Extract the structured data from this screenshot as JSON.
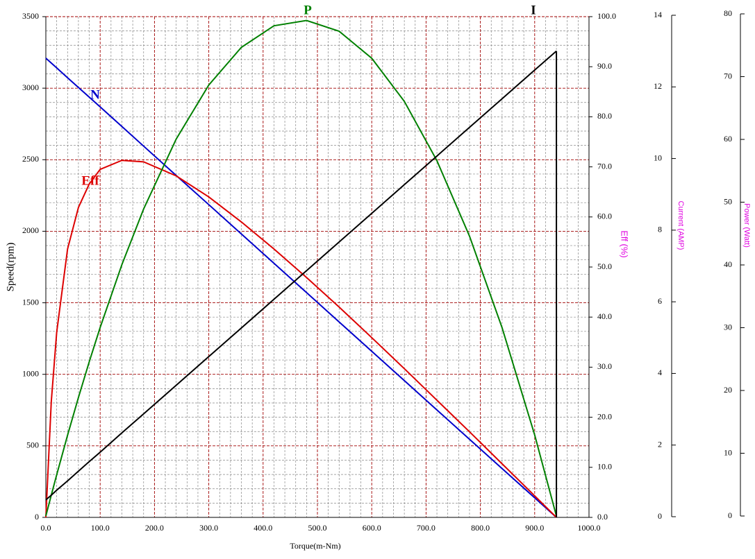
{
  "chart_data": {
    "type": "line",
    "x_label": "Torque(m-Nm)",
    "y_label": "Speed(rpm)",
    "y2_label": "Eff (%)",
    "y3_label": "Current (AMP)",
    "y4_label": "Power (Watt)",
    "grid": true,
    "x": [
      0,
      10,
      20,
      40,
      60,
      80,
      100,
      140,
      180,
      240,
      300,
      360,
      420,
      480,
      540,
      600,
      660,
      720,
      780,
      840,
      900,
      940
    ],
    "series": [
      {
        "name": "N",
        "color": "#0000cc",
        "axis": "y",
        "values": [
          3210,
          3176,
          3142,
          3073,
          3005,
          2937,
          2869,
          2732,
          2595,
          2390,
          2186,
          1981,
          1776,
          1571,
          1366,
          1161,
          956,
          751,
          546,
          341,
          137,
          0
        ]
      },
      {
        "name": "Eff",
        "color": "#dd0000",
        "axis": "y2",
        "values": [
          0,
          23.1,
          37.0,
          53.6,
          61.9,
          66.6,
          69.5,
          71.3,
          71.0,
          68.2,
          64.0,
          59.0,
          53.6,
          47.9,
          42.0,
          35.9,
          29.7,
          23.4,
          17.1,
          10.7,
          4.3,
          0
        ]
      },
      {
        "name": "P",
        "color": "#008000",
        "axis": "y4",
        "values": [
          0,
          3.33,
          6.58,
          12.87,
          18.88,
          24.6,
          30.04,
          40.05,
          48.91,
          60.06,
          68.66,
          74.67,
          78.1,
          78.95,
          77.23,
          72.93,
          66.06,
          56.61,
          44.59,
          29.99,
          12.91,
          0
        ]
      },
      {
        "name": "I",
        "color": "#000000",
        "axis": "y3",
        "values": [
          0.47,
          0.6,
          0.74,
          1.0,
          1.27,
          1.54,
          1.8,
          2.34,
          2.87,
          3.67,
          4.47,
          5.27,
          6.07,
          6.87,
          7.67,
          8.47,
          9.27,
          10.07,
          10.87,
          11.67,
          12.47,
          13.0
        ]
      }
    ],
    "xlim": [
      0,
      1000
    ],
    "xticks": [
      {
        "value": 0,
        "label": "0.0"
      },
      {
        "value": 100,
        "label": "100.0"
      },
      {
        "value": 200,
        "label": "200.0"
      },
      {
        "value": 300,
        "label": "300.0"
      },
      {
        "value": 400,
        "label": "400.0"
      },
      {
        "value": 500,
        "label": "500.0"
      },
      {
        "value": 600,
        "label": "600.0"
      },
      {
        "value": 700,
        "label": "700.0"
      },
      {
        "value": 800,
        "label": "800.0"
      },
      {
        "value": 900,
        "label": "900.0"
      },
      {
        "value": 1000,
        "label": "1000.0"
      }
    ],
    "ylim": [
      0,
      3500
    ],
    "yticks": [
      0,
      500,
      1000,
      1500,
      2000,
      2500,
      3000,
      3500
    ],
    "y2lim": [
      0,
      100
    ],
    "y2ticks": [
      {
        "value": 0,
        "label": "0.0"
      },
      {
        "value": 10,
        "label": "10.0"
      },
      {
        "value": 20,
        "label": "20.0"
      },
      {
        "value": 30,
        "label": "30.0"
      },
      {
        "value": 40,
        "label": "40.0"
      },
      {
        "value": 50,
        "label": "50.0"
      },
      {
        "value": 60,
        "label": "60.0"
      },
      {
        "value": 70,
        "label": "70.0"
      },
      {
        "value": 80,
        "label": "80.0"
      },
      {
        "value": 90,
        "label": "90.0"
      },
      {
        "value": 100,
        "label": "100.0"
      }
    ],
    "y3lim": [
      0,
      14
    ],
    "y3ticks": [
      0,
      2,
      4,
      6,
      8,
      10,
      12,
      14
    ],
    "y4lim": [
      0,
      80
    ],
    "y4ticks": [
      0,
      10,
      20,
      30,
      40,
      50,
      60,
      70,
      80
    ]
  }
}
